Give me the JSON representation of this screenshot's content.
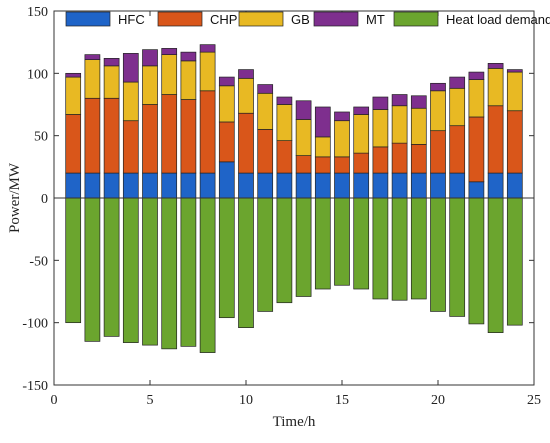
{
  "chart_data": {
    "type": "bar",
    "stacked": true,
    "xlabel": "Time/h",
    "ylabel": "Power/MW",
    "xlim": [
      0,
      25
    ],
    "ylim": [
      -150,
      150
    ],
    "xticks": [
      "0",
      "5",
      "10",
      "15",
      "20",
      "25"
    ],
    "yticks": [
      "150",
      "100",
      "50",
      "0",
      "-50",
      "-100",
      "-150"
    ],
    "legend_position": "top",
    "x": [
      1,
      2,
      3,
      4,
      5,
      6,
      7,
      8,
      9,
      10,
      11,
      12,
      13,
      14,
      15,
      16,
      17,
      18,
      19,
      20,
      21,
      22,
      23,
      24
    ],
    "series": [
      {
        "name": "HFC",
        "color": "#1F64C8",
        "values": [
          20,
          20,
          20,
          20,
          20,
          20,
          20,
          20,
          29,
          20,
          20,
          20,
          20,
          20,
          20,
          20,
          20,
          20,
          20,
          20,
          20,
          13,
          20,
          20
        ]
      },
      {
        "name": "CHP",
        "color": "#D9561A",
        "values": [
          47,
          60,
          60,
          42,
          55,
          63,
          59,
          66,
          32,
          48,
          35,
          26,
          14,
          13,
          13,
          16,
          21,
          24,
          23,
          34,
          38,
          52,
          54,
          50
        ]
      },
      {
        "name": "GB",
        "color": "#E8B923",
        "values": [
          30,
          31,
          26,
          31,
          31,
          32,
          31,
          31,
          29,
          28,
          29,
          29,
          29,
          16,
          29,
          31,
          30,
          30,
          29,
          32,
          30,
          30,
          30,
          31
        ]
      },
      {
        "name": "MT",
        "color": "#7E2F8E",
        "values": [
          3,
          4,
          6,
          23,
          13,
          5,
          7,
          6,
          7,
          7,
          7,
          6,
          15,
          24,
          7,
          6,
          10,
          9,
          10,
          6,
          9,
          6,
          4,
          2
        ]
      },
      {
        "name": "Heat load demand",
        "color": "#6BA52E",
        "values": [
          -100,
          -115,
          -111,
          -116,
          -118,
          -121,
          -119,
          -124,
          -96,
          -104,
          -91,
          -84,
          -79,
          -73,
          -70,
          -73,
          -81,
          -82,
          -81,
          -91,
          -95,
          -101,
          -108,
          -102
        ]
      }
    ]
  }
}
